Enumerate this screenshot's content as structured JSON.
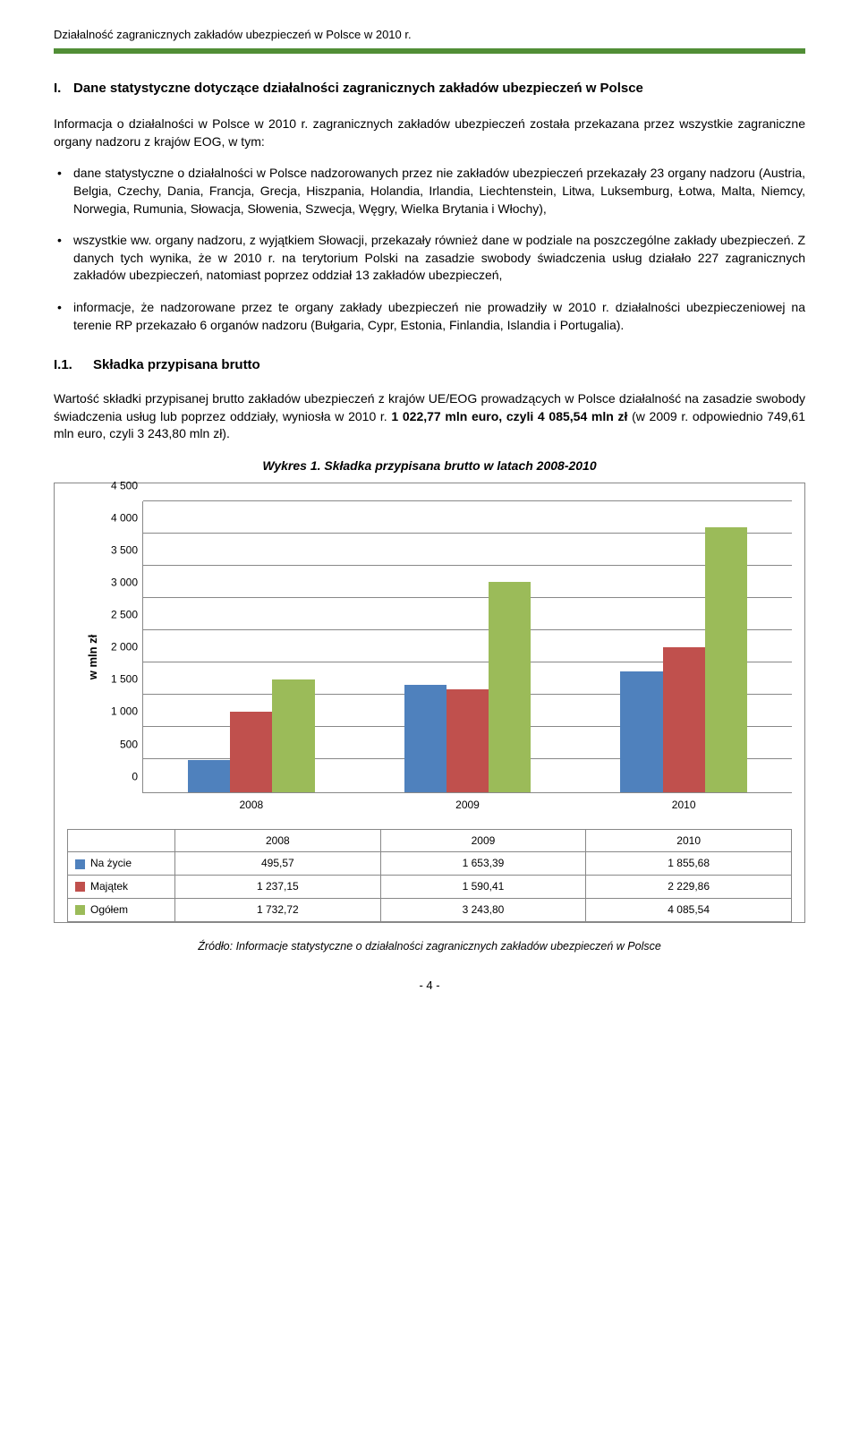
{
  "header": "Działalność zagranicznych zakładów ubezpieczeń w Polsce w 2010 r.",
  "section": {
    "num": "I.",
    "title": "Dane statystyczne dotyczące działalności zagranicznych zakładów ubezpieczeń w Polsce"
  },
  "intro": "Informacja o działalności w Polsce w 2010 r. zagranicznych zakładów ubezpieczeń została przekazana przez wszystkie zagraniczne organy nadzoru z krajów EOG, w tym:",
  "bullets": [
    "dane statystyczne o działalności w Polsce nadzorowanych przez nie zakładów ubezpieczeń przekazały 23 organy nadzoru (Austria, Belgia, Czechy, Dania, Francja, Grecja, Hiszpania, Holandia, Irlandia, Liechtenstein, Litwa, Luksemburg, Łotwa, Malta, Niemcy, Norwegia, Rumunia, Słowacja, Słowenia, Szwecja, Węgry, Wielka Brytania i Włochy),",
    "wszystkie ww. organy nadzoru, z wyjątkiem Słowacji, przekazały również dane w podziale na poszczególne zakłady ubezpieczeń. Z danych tych wynika, że w 2010 r. na terytorium Polski na zasadzie swobody świadczenia usług działało 227 zagranicznych zakładów ubezpieczeń, natomiast poprzez oddział 13 zakładów ubezpieczeń,",
    "informacje, że nadzorowane przez te organy zakłady ubezpieczeń nie prowadziły w 2010 r. działalności ubezpieczeniowej na terenie RP przekazało 6 organów nadzoru (Bułgaria, Cypr, Estonia, Finlandia, Islandia i Portugalia)."
  ],
  "subsection": {
    "num": "I.1.",
    "title": "Składka przypisana brutto"
  },
  "body2": "Wartość składki przypisanej brutto zakładów ubezpieczeń z krajów UE/EOG prowadzących w Polsce działalność na zasadzie swobody świadczenia usług lub poprzez oddziały, wyniosła w 2010 r. 1 022,77 mln euro, czyli 4 085,54 mln zł (w 2009 r. odpowiednio 749,61 mln euro, czyli 3 243,80 mln zł).",
  "body2_bold": "1 022,77 mln euro, czyli 4 085,54 mln zł",
  "chart": {
    "caption": "Wykres 1. Składka przypisana brutto w latach 2008-2010",
    "ylabel": "w mln zł",
    "ylim": [
      0,
      4500
    ],
    "ytick_step": 500,
    "yticks": [
      "0",
      "500",
      "1 000",
      "1 500",
      "2 000",
      "2 500",
      "3 000",
      "3 500",
      "4 000",
      "4 500"
    ],
    "categories": [
      "2008",
      "2009",
      "2010"
    ],
    "series": [
      {
        "name": "Na życie",
        "color": "#4f81bd",
        "values": [
          495.57,
          1653.39,
          1855.68
        ],
        "labels": [
          "495,57",
          "1 653,39",
          "1 855,68"
        ]
      },
      {
        "name": "Majątek",
        "color": "#c0504d",
        "values": [
          1237.15,
          1590.41,
          2229.86
        ],
        "labels": [
          "1 237,15",
          "1 590,41",
          "2 229,86"
        ]
      },
      {
        "name": "Ogółem",
        "color": "#9bbb59",
        "values": [
          1732.72,
          3243.8,
          4085.54
        ],
        "labels": [
          "1 732,72",
          "3 243,80",
          "4 085,54"
        ]
      }
    ],
    "bar_width_pct": 6.5,
    "group_gap_pct": 2,
    "background": "#ffffff",
    "grid_color": "#888888",
    "tick_fontsize": 12
  },
  "source": "Źródło: Informacje statystyczne o działalności zagranicznych zakładów ubezpieczeń w Polsce",
  "pagenum": "- 4 -"
}
